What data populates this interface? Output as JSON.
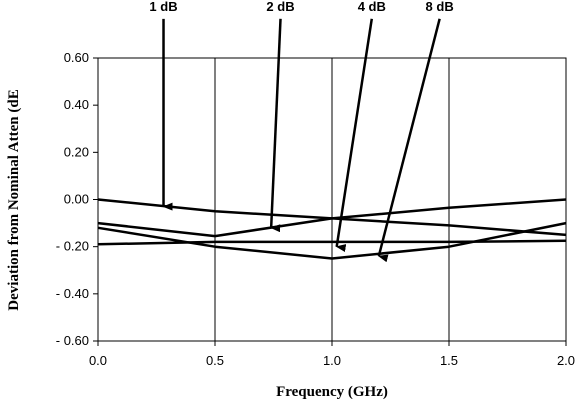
{
  "chart_data": {
    "type": "line",
    "xlabel": "Frequency (GHz)",
    "ylabel": "Deviation from Nominal Atten (dE",
    "xlim": [
      0.0,
      2.0
    ],
    "ylim": [
      -0.6,
      0.6
    ],
    "x_ticks": [
      "0.0",
      "0.5",
      "1.0",
      "1.5",
      "2.0"
    ],
    "y_ticks": [
      "0.60",
      "0.40",
      "0.20",
      "0.00",
      "- 0.20",
      "- 0.40",
      "- 0.60"
    ],
    "grid": "vertical",
    "series": [
      {
        "name": "1 dB",
        "x": [
          0.0,
          0.5,
          1.0,
          1.5,
          2.0
        ],
        "values": [
          0.0,
          -0.05,
          -0.08,
          -0.11,
          -0.15
        ]
      },
      {
        "name": "2 dB",
        "x": [
          0.0,
          0.5,
          1.0,
          1.5,
          2.0
        ],
        "values": [
          -0.1,
          -0.155,
          -0.08,
          -0.035,
          0.0
        ]
      },
      {
        "name": "4 dB",
        "x": [
          0.0,
          0.5,
          1.0,
          1.5,
          2.0
        ],
        "values": [
          -0.19,
          -0.18,
          -0.18,
          -0.18,
          -0.175
        ]
      },
      {
        "name": "8 dB",
        "x": [
          0.0,
          0.5,
          1.0,
          1.5,
          2.0
        ],
        "values": [
          -0.12,
          -0.2,
          -0.25,
          -0.2,
          -0.1
        ]
      }
    ],
    "annotations": [
      {
        "label": "1 dB",
        "label_x": 0.28,
        "label_y": 0.8,
        "point_x": 0.28,
        "point_y": -0.03
      },
      {
        "label": "2 dB",
        "label_x": 0.78,
        "label_y": 0.8,
        "point_x": 0.74,
        "point_y": -0.12
      },
      {
        "label": "4 dB",
        "label_x": 1.17,
        "label_y": 0.8,
        "point_x": 1.02,
        "point_y": -0.2
      },
      {
        "label": "8 dB",
        "label_x": 1.46,
        "label_y": 0.8,
        "point_x": 1.2,
        "point_y": -0.24
      }
    ]
  }
}
